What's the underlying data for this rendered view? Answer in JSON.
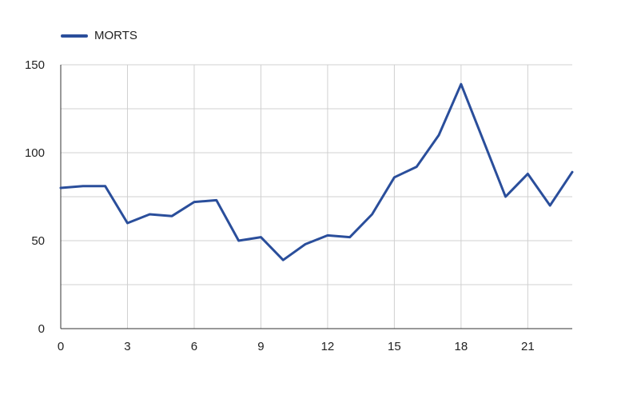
{
  "chart_data": {
    "type": "line",
    "title": "",
    "xlabel": "",
    "ylabel": "",
    "xlim": [
      0,
      23
    ],
    "ylim": [
      0,
      150
    ],
    "x_ticks": [
      0,
      3,
      6,
      9,
      12,
      15,
      18,
      21
    ],
    "y_ticks": [
      0,
      50,
      100,
      150
    ],
    "grid": true,
    "legend_position": "top-left",
    "x": [
      0,
      1,
      2,
      3,
      4,
      5,
      6,
      7,
      8,
      9,
      10,
      11,
      12,
      13,
      14,
      15,
      16,
      17,
      18,
      19,
      20,
      21,
      22,
      23
    ],
    "series": [
      {
        "name": "MORTS",
        "color": "#2a4e9b",
        "values": [
          80,
          81,
          81,
          60,
          65,
          64,
          72,
          73,
          50,
          52,
          39,
          48,
          53,
          52,
          65,
          86,
          92,
          110,
          139,
          107,
          75,
          88,
          70,
          89
        ]
      }
    ]
  }
}
